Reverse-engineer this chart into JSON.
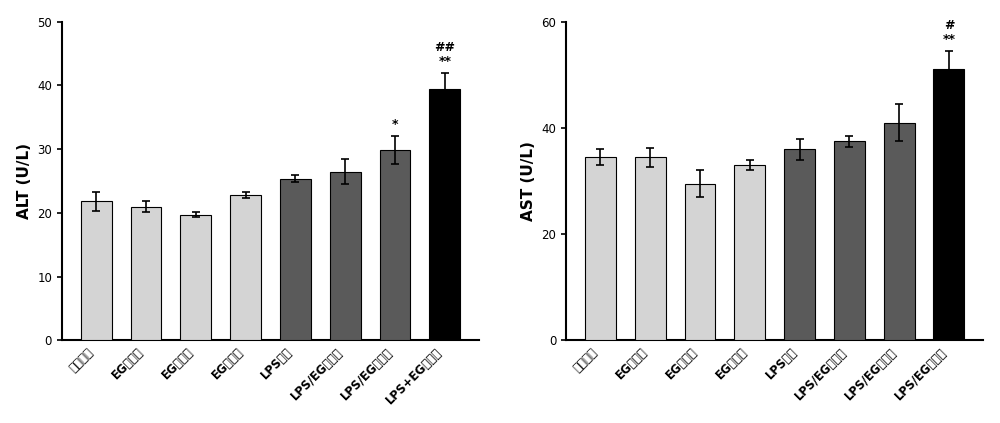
{
  "alt": {
    "categories": [
      "正常对照",
      "EG低剂量",
      "EG中剂量",
      "EG高剂量",
      "LPS模型",
      "LPS/EG低剂量",
      "LPS/EG中剂量",
      "LPS+EG高剂量"
    ],
    "values": [
      21.8,
      21.0,
      19.7,
      22.8,
      25.4,
      26.5,
      29.9,
      39.5
    ],
    "errors": [
      1.5,
      0.8,
      0.4,
      0.5,
      0.5,
      2.0,
      2.2,
      2.5
    ],
    "colors": [
      "#d4d4d4",
      "#d4d4d4",
      "#d4d4d4",
      "#d4d4d4",
      "#5a5a5a",
      "#5a5a5a",
      "#5a5a5a",
      "#000000"
    ],
    "ylabel": "ALT (U/L)",
    "ylim": [
      0,
      50
    ],
    "yticks": [
      0,
      10,
      20,
      30,
      40,
      50
    ],
    "annot_idx": [
      6,
      7
    ],
    "annot_lines": [
      [
        "*"
      ],
      [
        "**",
        "##"
      ]
    ]
  },
  "ast": {
    "categories": [
      "正常对照",
      "EG低剂量",
      "EG中剂量",
      "EG高剂量",
      "LPS模型",
      "LPS/EG低剂量",
      "LPS/EG中剂量",
      "LPS/EG高剂量"
    ],
    "values": [
      34.5,
      34.5,
      29.5,
      33.0,
      36.0,
      37.5,
      41.0,
      51.0
    ],
    "errors": [
      1.5,
      1.8,
      2.5,
      1.0,
      2.0,
      1.0,
      3.5,
      3.5
    ],
    "colors": [
      "#d4d4d4",
      "#d4d4d4",
      "#d4d4d4",
      "#d4d4d4",
      "#5a5a5a",
      "#5a5a5a",
      "#5a5a5a",
      "#000000"
    ],
    "ylabel": "AST (U/L)",
    "ylim": [
      0,
      60
    ],
    "yticks": [
      0,
      20,
      40,
      60
    ],
    "annot_idx": [
      7
    ],
    "annot_lines": [
      [
        "**",
        "#"
      ]
    ]
  },
  "bar_width": 0.62,
  "edgecolor": "#000000",
  "capsize": 3,
  "annot_fontsize": 9,
  "tick_fontsize": 8.5,
  "label_fontsize": 11,
  "background_color": "#ffffff"
}
